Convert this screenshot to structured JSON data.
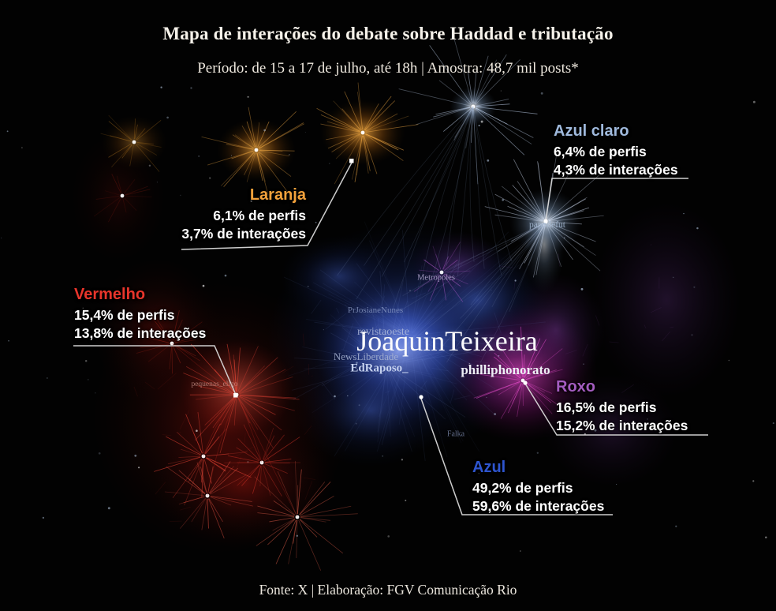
{
  "header": {
    "title": "Mapa de interações do debate sobre Haddad e tributação",
    "subtitle": "Período: de 15 a 17 de julho, até 18h | Amostra: 48,7 mil posts*"
  },
  "footer": {
    "source": "Fonte: X | Elaboração: FGV Comunicação Rio"
  },
  "annotations": {
    "azul_claro": {
      "title": "Azul claro",
      "perfis": "6,4% de perfis",
      "interacoes": "4,3% de interações",
      "color": "#9fb9dc"
    },
    "laranja": {
      "title": "Laranja",
      "perfis": "6,1% de perfis",
      "interacoes": "3,7% de interações",
      "color": "#f2a13b"
    },
    "vermelho": {
      "title": "Vermelho",
      "perfis": "15,4% de perfis",
      "interacoes": "13,8% de interações",
      "color": "#e8352b"
    },
    "roxo": {
      "title": "Roxo",
      "perfis": "16,5% de perfis",
      "interacoes": "15,2% de interações",
      "color": "#a45cc0"
    },
    "azul": {
      "title": "Azul",
      "perfis": "49,2% de perfis",
      "interacoes": "59,6% de interações",
      "color": "#2e55d0"
    }
  },
  "node_labels": {
    "main": "JoaquinTeixeira",
    "philliphonorato": "philliphonorato",
    "edraposo": "EdRaposo_",
    "newsliberdade": "NewsLiberdade",
    "revistaoeste": "revistaoeste",
    "prjosiane": "PrJosianeNunes",
    "metropoles": "Metropoles",
    "papodefut": "papodefut",
    "pequenas": "pequenas_eligo",
    "falka": "Falka"
  },
  "chart_data": {
    "type": "network",
    "title": "Mapa de interações do debate sobre Haddad e tributação",
    "subtitle": "Período: de 15 a 17 de julho, até 18h | Amostra: 48,7 mil posts*",
    "source": "Fonte: X | Elaboração: FGV Comunicação Rio",
    "clusters": [
      {
        "name": "Azul",
        "color": "#2e55d0",
        "perfis_pct": 49.2,
        "interacoes_pct": 59.6
      },
      {
        "name": "Roxo",
        "color": "#a45cc0",
        "perfis_pct": 16.5,
        "interacoes_pct": 15.2
      },
      {
        "name": "Vermelho",
        "color": "#e8352b",
        "perfis_pct": 15.4,
        "interacoes_pct": 13.8
      },
      {
        "name": "Azul claro",
        "color": "#9fb9dc",
        "perfis_pct": 6.4,
        "interacoes_pct": 4.3
      },
      {
        "name": "Laranja",
        "color": "#f2a13b",
        "perfis_pct": 6.1,
        "interacoes_pct": 3.7
      }
    ],
    "labeled_nodes": [
      "JoaquinTeixeira",
      "philliphonorato",
      "EdRaposo_",
      "NewsLiberdade",
      "revistaoeste",
      "PrJosianeNunes",
      "Metropoles",
      "papodefut",
      "pequenas_eligo",
      "Falka"
    ]
  }
}
